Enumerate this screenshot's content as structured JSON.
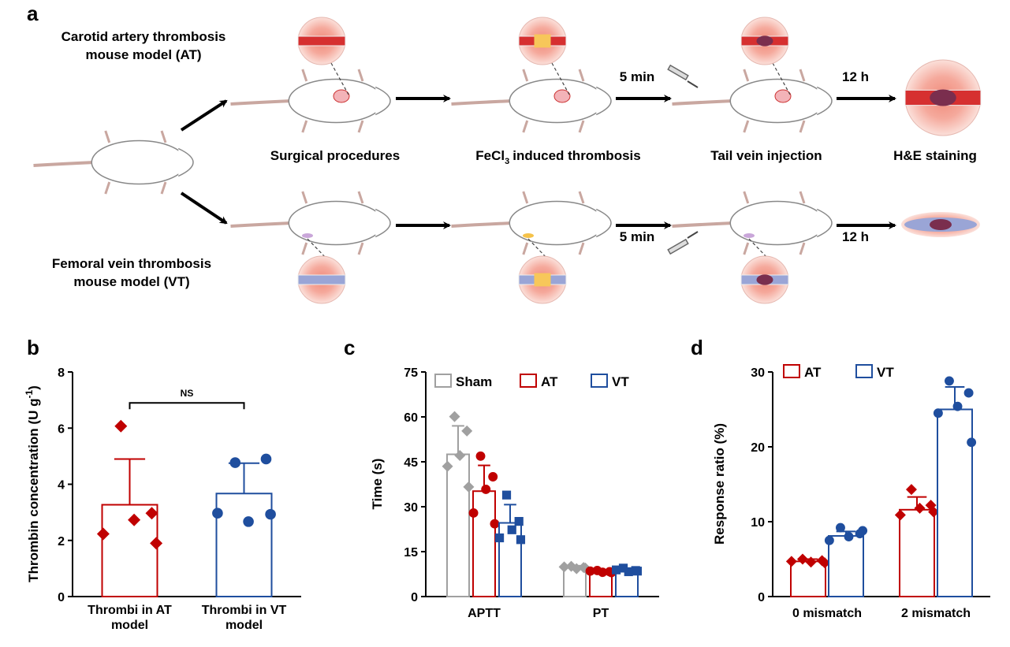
{
  "panel_a": {
    "label": "a",
    "at_title_line1": "Carotid artery thrombosis",
    "at_title_line2": "mouse model (AT)",
    "vt_title_line1": "Femoral vein thrombosis",
    "vt_title_line2": "mouse model (VT)",
    "steps": [
      "Surgical procedures",
      "induced thrombosis",
      "Tail vein injection",
      "H&E staining"
    ],
    "fecl_prefix": "FeCl",
    "fecl_sub": "3",
    "time1": "5 min",
    "time2": "12 h"
  },
  "chart_data": [
    {
      "panel": "b",
      "type": "bar",
      "ylabel_main": "Thrombin concentration (U g",
      "ylabel_sup": "-1",
      "ylabel_end": ")",
      "ylim": [
        0,
        8
      ],
      "yticks": [
        "0",
        "2",
        "4",
        "6",
        "8"
      ],
      "categories": [
        {
          "line1": "Thrombi in AT",
          "line2": "model"
        },
        {
          "line1": "Thrombi in VT",
          "line2": "model"
        }
      ],
      "values": [
        3.27,
        3.67
      ],
      "errors": [
        1.63,
        1.08
      ],
      "points": [
        [
          6.07,
          2.97,
          2.73,
          2.23,
          1.9
        ],
        [
          4.77,
          4.9,
          2.67,
          2.97,
          2.93
        ]
      ],
      "colors": [
        "#c00000",
        "#1f4e9e"
      ],
      "markers": [
        "diamond",
        "circle"
      ],
      "annotation": "NS"
    },
    {
      "panel": "c",
      "type": "bar",
      "ylabel": "Time (s)",
      "ylim": [
        0,
        75
      ],
      "yticks": [
        "0",
        "15",
        "30",
        "45",
        "60",
        "75"
      ],
      "categories": [
        "APTT",
        "PT"
      ],
      "legend": [
        "Sham",
        "AT",
        "VT"
      ],
      "series": [
        {
          "name": "Sham",
          "color": "#a0a0a0",
          "marker": "diamond",
          "values": [
            47.5,
            9.7
          ],
          "errors": [
            9.5,
            0.6
          ],
          "points": [
            [
              60.1,
              55.3,
              47.1,
              43.5,
              36.6
            ],
            [
              10.1,
              9.7,
              9.3,
              9.9,
              9.5
            ]
          ]
        },
        {
          "name": "AT",
          "color": "#c00000",
          "marker": "circle",
          "values": [
            35.2,
            8.3
          ],
          "errors": [
            8.6,
            0.4
          ],
          "points": [
            [
              46.9,
              40.0,
              35.8,
              27.9,
              24.3
            ],
            [
              8.7,
              8.3,
              8.1,
              8.5,
              8.0
            ]
          ]
        },
        {
          "name": "VT",
          "color": "#1f4e9e",
          "marker": "square",
          "values": [
            24.6,
            8.7
          ],
          "errors": [
            6.1,
            0.5
          ],
          "points": [
            [
              33.9,
              25.1,
              22.3,
              19.6,
              19.0
            ],
            [
              9.5,
              8.7,
              8.3,
              8.9,
              8.5
            ]
          ]
        }
      ]
    },
    {
      "panel": "d",
      "type": "bar",
      "ylabel": "Response ratio (%)",
      "ylim": [
        0,
        30
      ],
      "yticks": [
        "0",
        "10",
        "20",
        "30"
      ],
      "categories": [
        "0 mismatch",
        "2 mismatch"
      ],
      "legend": [
        "AT",
        "VT"
      ],
      "series": [
        {
          "name": "AT",
          "color": "#c00000",
          "marker": "diamond",
          "values": [
            4.7,
            11.6
          ],
          "errors": [
            0.3,
            1.7
          ],
          "points": [
            [
              5.0,
              4.8,
              4.6,
              4.7,
              4.5
            ],
            [
              14.3,
              12.2,
              11.8,
              10.9,
              11.3
            ]
          ]
        },
        {
          "name": "VT",
          "color": "#1f4e9e",
          "marker": "circle",
          "values": [
            8.1,
            25.0
          ],
          "errors": [
            0.6,
            3.0
          ],
          "points": [
            [
              9.2,
              8.4,
              8.0,
              7.5,
              8.8
            ],
            [
              28.8,
              27.2,
              25.4,
              24.5,
              20.6
            ]
          ]
        }
      ]
    }
  ]
}
